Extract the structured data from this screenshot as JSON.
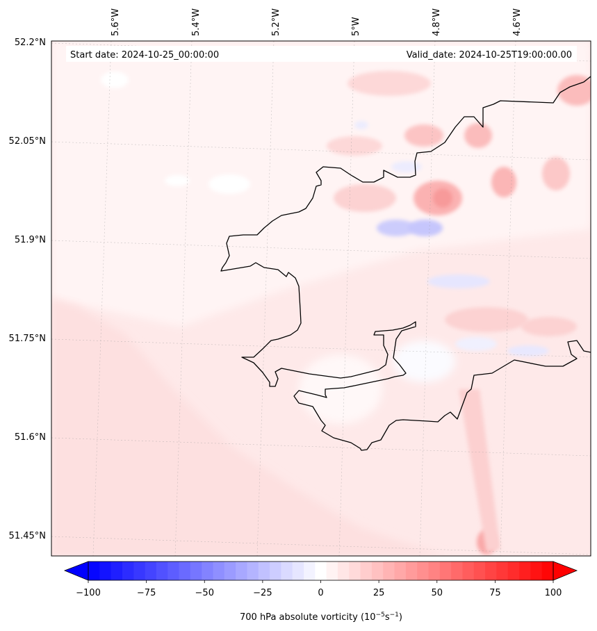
{
  "map": {
    "start_date_label": "Start date: 2024-10-25_00:00:00",
    "valid_date_label": "Valid_date: 2024-10-25T19:00:00.00",
    "lon_labels": [
      "5.6°W",
      "5.4°W",
      "5.2°W",
      "5°W",
      "4.8°W",
      "4.6°W"
    ],
    "lat_labels": [
      "52.2°N",
      "52.05°N",
      "51.9°N",
      "51.75°N",
      "51.6°N",
      "51.45°N"
    ],
    "background_color": "#fee9e9",
    "coast_color": "#000000"
  },
  "colorbar": {
    "ticks": [
      "−100",
      "−75",
      "−50",
      "−25",
      "0",
      "25",
      "50",
      "75",
      "100"
    ],
    "label_main": "700 hPa absolute vorticity (10",
    "label_exp1": "−5",
    "label_unit1": "s",
    "label_exp2": "−1",
    "label_close": ")",
    "colormap": "bwr",
    "range": [
      -100,
      100
    ],
    "levels": 41
  }
}
